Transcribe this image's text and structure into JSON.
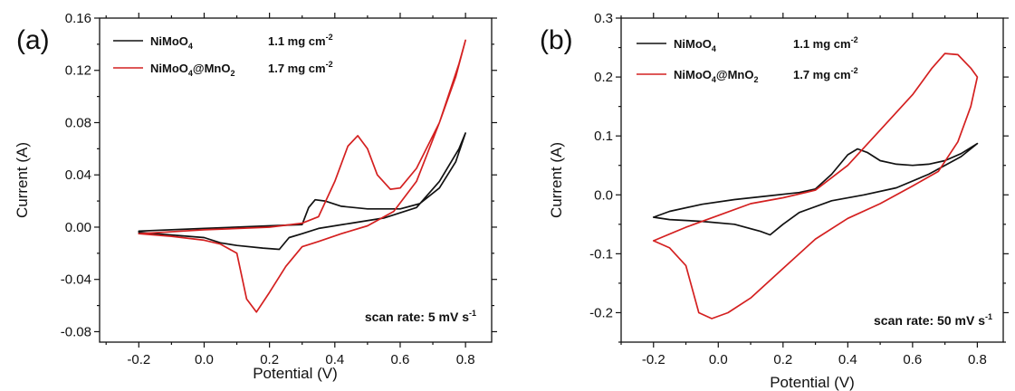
{
  "chart_data": [
    {
      "type": "line",
      "panel_label": "(a)",
      "xlabel": "Potential (V)",
      "ylabel": "Current (A)",
      "xlim": [
        -0.32,
        0.88
      ],
      "ylim": [
        -0.088,
        0.16
      ],
      "x_ticks": [
        -0.2,
        0.0,
        0.2,
        0.4,
        0.6,
        0.8
      ],
      "x_tick_labels": [
        "-0.2",
        "0.0",
        "0.2",
        "0.4",
        "0.6",
        "0.8"
      ],
      "y_ticks": [
        -0.08,
        -0.04,
        0.0,
        0.04,
        0.08,
        0.12,
        0.16
      ],
      "y_tick_labels": [
        "-0.08",
        "-0.04",
        "0.00",
        "0.04",
        "0.08",
        "0.12",
        "0.16"
      ],
      "annotation": {
        "prefix": "scan rate: 5 mV s",
        "sup": "-1"
      },
      "legend_position": "top-left",
      "series": [
        {
          "name": "NiMoO4",
          "legend": {
            "base": "NiMoO",
            "sub": "4",
            "loading": "1.1 mg cm",
            "sup": "-2"
          },
          "color": "#111111",
          "points": [
            [
              -0.2,
              -0.003
            ],
            [
              0.0,
              -0.001
            ],
            [
              0.2,
              0.001
            ],
            [
              0.3,
              0.002
            ],
            [
              0.32,
              0.015
            ],
            [
              0.34,
              0.021
            ],
            [
              0.37,
              0.02
            ],
            [
              0.42,
              0.016
            ],
            [
              0.5,
              0.014
            ],
            [
              0.6,
              0.014
            ],
            [
              0.66,
              0.018
            ],
            [
              0.72,
              0.03
            ],
            [
              0.77,
              0.05
            ],
            [
              0.8,
              0.072
            ],
            [
              0.78,
              0.06
            ],
            [
              0.72,
              0.035
            ],
            [
              0.65,
              0.015
            ],
            [
              0.55,
              0.007
            ],
            [
              0.45,
              0.003
            ],
            [
              0.35,
              -0.001
            ],
            [
              0.3,
              -0.005
            ],
            [
              0.26,
              -0.008
            ],
            [
              0.23,
              -0.017
            ],
            [
              0.18,
              -0.016
            ],
            [
              0.1,
              -0.014
            ],
            [
              0.05,
              -0.012
            ],
            [
              0.0,
              -0.008
            ],
            [
              -0.1,
              -0.006
            ],
            [
              -0.2,
              -0.004
            ]
          ]
        },
        {
          "name": "NiMoO4@MnO2",
          "legend": {
            "base": "NiMoO",
            "sub": "4",
            "mid": "@MnO",
            "sub2": "2",
            "loading": "1.7 mg cm",
            "sup": "-2"
          },
          "color": "#d42020",
          "points": [
            [
              -0.2,
              -0.005
            ],
            [
              0.0,
              -0.002
            ],
            [
              0.2,
              0.0
            ],
            [
              0.3,
              0.003
            ],
            [
              0.35,
              0.008
            ],
            [
              0.4,
              0.035
            ],
            [
              0.44,
              0.062
            ],
            [
              0.47,
              0.07
            ],
            [
              0.5,
              0.06
            ],
            [
              0.53,
              0.04
            ],
            [
              0.57,
              0.029
            ],
            [
              0.6,
              0.03
            ],
            [
              0.65,
              0.045
            ],
            [
              0.72,
              0.08
            ],
            [
              0.77,
              0.115
            ],
            [
              0.8,
              0.143
            ],
            [
              0.78,
              0.125
            ],
            [
              0.72,
              0.08
            ],
            [
              0.65,
              0.035
            ],
            [
              0.58,
              0.012
            ],
            [
              0.5,
              0.001
            ],
            [
              0.42,
              -0.005
            ],
            [
              0.35,
              -0.011
            ],
            [
              0.3,
              -0.015
            ],
            [
              0.25,
              -0.03
            ],
            [
              0.2,
              -0.05
            ],
            [
              0.16,
              -0.065
            ],
            [
              0.13,
              -0.055
            ],
            [
              0.1,
              -0.02
            ],
            [
              0.05,
              -0.013
            ],
            [
              0.0,
              -0.01
            ],
            [
              -0.1,
              -0.007
            ],
            [
              -0.2,
              -0.005
            ]
          ]
        }
      ]
    },
    {
      "type": "line",
      "panel_label": "(b)",
      "xlabel": "Potential (V)",
      "ylabel": "Current (A)",
      "xlim": [
        -0.3,
        0.88
      ],
      "ylim": [
        -0.25,
        0.3
      ],
      "x_ticks": [
        -0.2,
        0.0,
        0.2,
        0.4,
        0.6,
        0.8
      ],
      "x_tick_labels": [
        "-0.2",
        "0.0",
        "0.2",
        "0.4",
        "0.6",
        "0.8"
      ],
      "y_ticks": [
        -0.2,
        -0.1,
        0.0,
        0.1,
        0.2,
        0.3
      ],
      "y_tick_labels": [
        "-0.2",
        "-0.1",
        "0.0",
        "0.1",
        "0.2",
        "0.3"
      ],
      "annotation": {
        "prefix": "scan rate: 50 mV s",
        "sup": "-1"
      },
      "legend_position": "top-left",
      "series": [
        {
          "name": "NiMoO4",
          "legend": {
            "base": "NiMoO",
            "sub": "4",
            "loading": "1.1 mg cm",
            "sup": "-2"
          },
          "color": "#111111",
          "points": [
            [
              -0.2,
              -0.038
            ],
            [
              -0.15,
              -0.028
            ],
            [
              -0.05,
              -0.016
            ],
            [
              0.05,
              -0.008
            ],
            [
              0.15,
              -0.002
            ],
            [
              0.25,
              0.004
            ],
            [
              0.3,
              0.01
            ],
            [
              0.35,
              0.035
            ],
            [
              0.4,
              0.068
            ],
            [
              0.43,
              0.078
            ],
            [
              0.46,
              0.072
            ],
            [
              0.5,
              0.058
            ],
            [
              0.55,
              0.052
            ],
            [
              0.6,
              0.05
            ],
            [
              0.65,
              0.052
            ],
            [
              0.7,
              0.058
            ],
            [
              0.75,
              0.07
            ],
            [
              0.8,
              0.087
            ],
            [
              0.75,
              0.065
            ],
            [
              0.65,
              0.035
            ],
            [
              0.55,
              0.012
            ],
            [
              0.45,
              0.0
            ],
            [
              0.35,
              -0.01
            ],
            [
              0.25,
              -0.03
            ],
            [
              0.2,
              -0.05
            ],
            [
              0.16,
              -0.068
            ],
            [
              0.13,
              -0.062
            ],
            [
              0.05,
              -0.05
            ],
            [
              -0.05,
              -0.045
            ],
            [
              -0.15,
              -0.042
            ],
            [
              -0.2,
              -0.038
            ]
          ]
        },
        {
          "name": "NiMoO4@MnO2",
          "legend": {
            "base": "NiMoO",
            "sub": "4",
            "mid": "@MnO",
            "sub2": "2",
            "loading": "1.7 mg cm",
            "sup": "-2"
          },
          "color": "#d42020",
          "points": [
            [
              -0.2,
              -0.078
            ],
            [
              -0.1,
              -0.055
            ],
            [
              0.0,
              -0.035
            ],
            [
              0.1,
              -0.015
            ],
            [
              0.2,
              -0.005
            ],
            [
              0.3,
              0.008
            ],
            [
              0.4,
              0.05
            ],
            [
              0.5,
              0.11
            ],
            [
              0.6,
              0.17
            ],
            [
              0.66,
              0.215
            ],
            [
              0.7,
              0.24
            ],
            [
              0.74,
              0.238
            ],
            [
              0.78,
              0.215
            ],
            [
              0.8,
              0.2
            ],
            [
              0.78,
              0.15
            ],
            [
              0.74,
              0.09
            ],
            [
              0.68,
              0.04
            ],
            [
              0.6,
              0.015
            ],
            [
              0.5,
              -0.015
            ],
            [
              0.4,
              -0.04
            ],
            [
              0.3,
              -0.075
            ],
            [
              0.2,
              -0.125
            ],
            [
              0.1,
              -0.175
            ],
            [
              0.03,
              -0.2
            ],
            [
              -0.02,
              -0.21
            ],
            [
              -0.06,
              -0.2
            ],
            [
              -0.1,
              -0.12
            ],
            [
              -0.15,
              -0.09
            ],
            [
              -0.2,
              -0.078
            ]
          ]
        }
      ]
    }
  ]
}
